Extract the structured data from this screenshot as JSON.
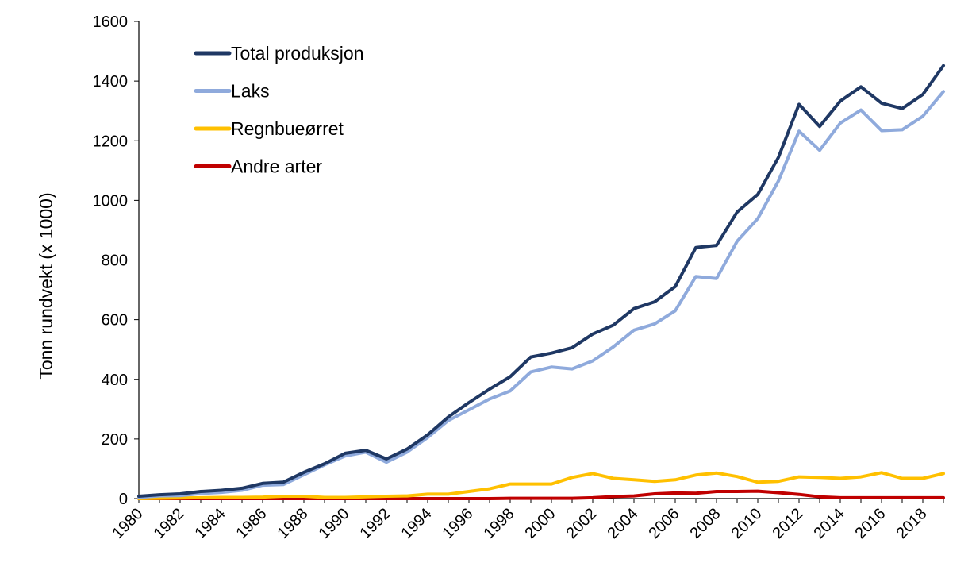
{
  "chart_data": {
    "type": "line",
    "title": "",
    "xlabel": "",
    "ylabel": "Tonn rundvekt (x 1000)",
    "ylim": [
      0,
      1600
    ],
    "yticks": [
      0,
      200,
      400,
      600,
      800,
      1000,
      1200,
      1400,
      1600
    ],
    "xlim": [
      1980,
      2019
    ],
    "xticks": [
      1980,
      1982,
      1984,
      1986,
      1988,
      1990,
      1992,
      1994,
      1996,
      1998,
      2000,
      2002,
      2004,
      2006,
      2008,
      2010,
      2012,
      2014,
      2016,
      2018
    ],
    "grid": false,
    "legend_position": "top-left",
    "x": [
      1980,
      1981,
      1982,
      1983,
      1984,
      1985,
      1986,
      1987,
      1988,
      1989,
      1990,
      1991,
      1992,
      1993,
      1994,
      1995,
      1996,
      1997,
      1998,
      1999,
      2000,
      2001,
      2002,
      2003,
      2004,
      2005,
      2006,
      2007,
      2008,
      2009,
      2010,
      2011,
      2012,
      2013,
      2014,
      2015,
      2016,
      2017,
      2018,
      2019
    ],
    "series": [
      {
        "name": "Total produksjon",
        "color": "#1f3864",
        "values": [
          8,
          13,
          16,
          24,
          28,
          35,
          51,
          55,
          88,
          117,
          152,
          162,
          133,
          166,
          214,
          274,
          322,
          367,
          409,
          475,
          488,
          506,
          552,
          582,
          637,
          660,
          711,
          842,
          849,
          961,
          1020,
          1144,
          1322,
          1248,
          1333,
          1381,
          1326,
          1308,
          1355,
          1452
        ]
      },
      {
        "name": "Laks",
        "color": "#8faadc",
        "values": [
          4,
          9,
          10,
          17,
          21,
          28,
          45,
          47,
          80,
          113,
          143,
          156,
          122,
          156,
          205,
          262,
          298,
          334,
          361,
          425,
          441,
          435,
          462,
          509,
          565,
          586,
          630,
          745,
          738,
          863,
          939,
          1065,
          1232,
          1168,
          1259,
          1303,
          1234,
          1237,
          1282,
          1365
        ]
      },
      {
        "name": "Regnbueørret",
        "color": "#ffc000",
        "values": [
          0,
          1,
          2,
          3,
          4,
          4,
          5,
          8,
          8,
          4,
          4,
          6,
          8,
          9,
          15,
          15,
          24,
          33,
          49,
          49,
          49,
          71,
          84,
          68,
          63,
          58,
          63,
          79,
          86,
          74,
          55,
          58,
          73,
          71,
          68,
          73,
          87,
          68,
          68,
          84
        ]
      },
      {
        "name": "Andre arter",
        "color": "#c00000",
        "values": [
          0,
          0,
          0,
          0,
          0,
          0,
          0,
          0,
          0,
          0,
          0,
          0,
          0,
          0,
          0,
          0,
          0,
          0,
          1,
          1,
          1,
          1,
          3,
          7,
          9,
          16,
          19,
          18,
          24,
          24,
          25,
          20,
          14,
          6,
          3,
          3,
          3,
          3,
          3,
          3
        ]
      }
    ]
  }
}
